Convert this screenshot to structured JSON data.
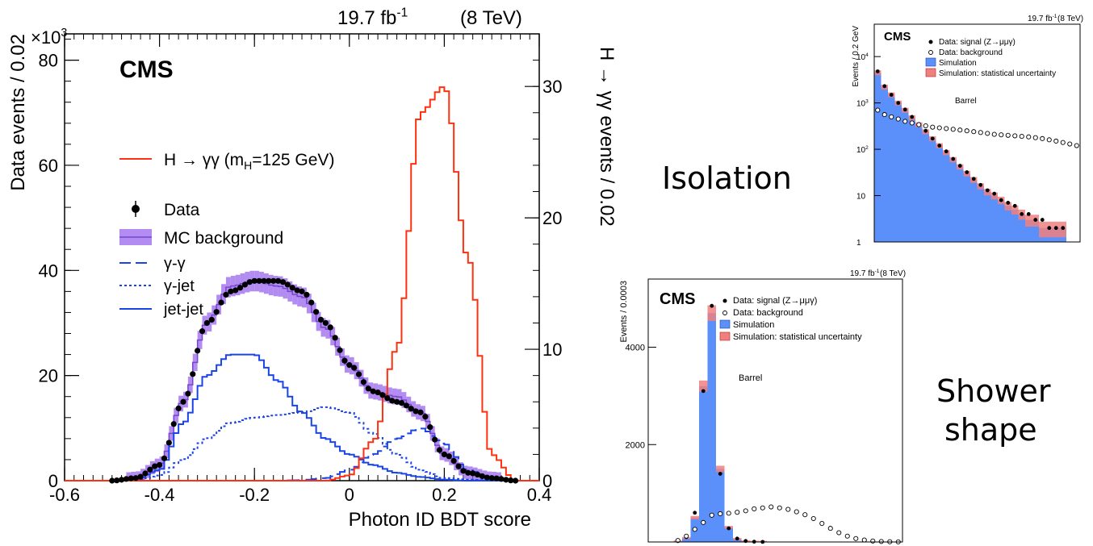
{
  "chart_data": [
    {
      "type": "line",
      "title": "",
      "lumi_label": "19.7 fb",
      "lumi_sup": "-1",
      "lumi_energy": "(8 TeV)",
      "cms_label": "CMS",
      "xlabel": "Photon ID BDT score",
      "ylabel_left": "Data events / 0.02",
      "ylabel_right": "H → γγ events / 0.02",
      "multiplier_base": "×10",
      "multiplier_exp": "3",
      "xlim": [
        -0.6,
        0.4
      ],
      "ylim_left": [
        0,
        85
      ],
      "ylim_right": [
        0,
        34
      ],
      "xticks": [
        -0.6,
        -0.4,
        -0.2,
        0,
        0.2,
        0.4
      ],
      "xtick_labels": [
        "-0.6",
        "-0.4",
        "-0.2",
        "0",
        "0.2",
        "0.4"
      ],
      "yticks_left": [
        0,
        20,
        40,
        60,
        80
      ],
      "ytick_left_labels": [
        "0",
        "20",
        "40",
        "60",
        "80"
      ],
      "yticks_right": [
        0,
        10,
        20,
        30
      ],
      "ytick_right_labels": [
        "0",
        "10",
        "20",
        "30"
      ],
      "legend": {
        "signal_prefix": "H → γγ  (m",
        "signal_sub": "H",
        "signal_suffix": "=125 GeV)",
        "data": "Data",
        "mc": "MC background",
        "gg": "γ-γ",
        "gj": "γ-jet",
        "jj": "jet-jet"
      },
      "colors": {
        "signal": "#ff3010",
        "data": "#000000",
        "mc_band": "#9966ee",
        "mc_line": "#7744cc",
        "bkg": "#1a44e6"
      },
      "x": [
        -0.5,
        -0.45,
        -0.4,
        -0.35,
        -0.3,
        -0.25,
        -0.2,
        -0.15,
        -0.1,
        -0.05,
        0.0,
        0.05,
        0.1,
        0.15,
        0.2,
        0.25,
        0.3,
        0.35
      ],
      "series": [
        {
          "name": "Data",
          "values": [
            0,
            0.5,
            3,
            15,
            30,
            36,
            38,
            38,
            36,
            30,
            22,
            17,
            15,
            13,
            5,
            1.5,
            0.5,
            0
          ]
        },
        {
          "name": "MC background",
          "values": [
            0,
            0.5,
            3,
            15,
            30,
            37,
            38,
            37,
            35,
            29,
            22,
            17,
            16,
            13,
            5,
            1.5,
            0.5,
            0
          ]
        },
        {
          "name": "γ-γ",
          "values": [
            0,
            0,
            0,
            0,
            0,
            0,
            0,
            0,
            0.1,
            0.5,
            2,
            5,
            8,
            10,
            7,
            2,
            0.5,
            0
          ]
        },
        {
          "name": "γ-jet",
          "values": [
            0,
            0,
            1,
            4,
            8,
            11,
            12,
            12.5,
            13,
            14,
            13,
            9,
            5,
            2,
            0.5,
            0.2,
            0,
            0
          ]
        },
        {
          "name": "jet-jet",
          "values": [
            0,
            0.3,
            2,
            11,
            20,
            24,
            24,
            19,
            13,
            8,
            5,
            3,
            1.5,
            0.7,
            0.2,
            0,
            0,
            0
          ]
        },
        {
          "name": "H → γγ",
          "axis": "right",
          "values": [
            0,
            0,
            0,
            0,
            0,
            0,
            0,
            0,
            0,
            0,
            0.4,
            3,
            10,
            28,
            30,
            17,
            2,
            0
          ]
        }
      ]
    },
    {
      "type": "bar",
      "title": "",
      "annotation": "Isolation",
      "lumi_label": "19.7 fb",
      "lumi_sup": "-1",
      "lumi_energy": "(8 TeV)",
      "cms_label": "CMS",
      "ylabel": "Events / 0.2 GeV",
      "yscale": "log",
      "ylim": [
        1,
        50000
      ],
      "ytick_labels": [
        "1",
        "10",
        "10",
        "10",
        "10"
      ],
      "ytick_exps": [
        "",
        "",
        "2",
        "3",
        "4"
      ],
      "region_label": "Barrel",
      "legend": [
        "Data: signal (Z→μμγ)",
        "Data: background",
        "Simulation",
        "Simulation: statistical uncertainty"
      ],
      "colors": {
        "simulation": "#5b8ff9",
        "uncertainty": "#f08080"
      },
      "x_bins": 30,
      "series": [
        {
          "name": "Simulation",
          "values": [
            4500,
            2200,
            1500,
            1000,
            700,
            480,
            340,
            240,
            170,
            120,
            85,
            60,
            42,
            30,
            22,
            16,
            12,
            10,
            8,
            6,
            5,
            4,
            3,
            3,
            2,
            2,
            2,
            2,
            1,
            1
          ]
        },
        {
          "name": "Data: signal (Z→μμγ)",
          "values": [
            4800,
            2300,
            1500,
            1000,
            720,
            500,
            350,
            250,
            170,
            120,
            90,
            62,
            44,
            32,
            23,
            17,
            13,
            11,
            8,
            7,
            6,
            4,
            4,
            3,
            3,
            2,
            2,
            2,
            1,
            1
          ]
        },
        {
          "name": "Data: background",
          "values": [
            700,
            560,
            500,
            450,
            400,
            370,
            340,
            320,
            300,
            290,
            280,
            270,
            260,
            250,
            240,
            230,
            220,
            210,
            205,
            200,
            195,
            190,
            185,
            178,
            170,
            160,
            150,
            140,
            130,
            120
          ]
        }
      ]
    },
    {
      "type": "bar",
      "title": "",
      "annotation_line1": "Shower",
      "annotation_line2": "shape",
      "lumi_label": "19.7 fb",
      "lumi_sup": "-1",
      "lumi_energy": "(8 TeV)",
      "cms_label": "CMS",
      "ylabel": "Events / 0.0003",
      "ylim": [
        0,
        5400
      ],
      "ytick_labels": [
        "2000",
        "4000"
      ],
      "yticks": [
        2000,
        4000
      ],
      "region_label": "Barrel",
      "legend": [
        "Data: signal (Z→μμγ)",
        "Data: background",
        "Simulation",
        "Simulation: statistical uncertainty"
      ],
      "colors": {
        "simulation": "#5b8ff9",
        "uncertainty": "#f08080"
      },
      "x_bins": 30,
      "series": [
        {
          "name": "Simulation",
          "values": [
            0,
            0,
            0,
            10,
            80,
            500,
            3200,
            4700,
            1500,
            300,
            60,
            15,
            5,
            2,
            0,
            0,
            0,
            0,
            0,
            0,
            0,
            0,
            0,
            0,
            0,
            0,
            0,
            0,
            0,
            0
          ]
        },
        {
          "name": "Data: signal (Z→μμγ)",
          "values": [
            0,
            0,
            0,
            20,
            100,
            600,
            3100,
            4850,
            1400,
            280,
            70,
            20,
            6,
            2,
            0,
            0,
            0,
            0,
            0,
            0,
            0,
            0,
            0,
            0,
            0,
            0,
            0,
            0,
            0,
            0
          ]
        },
        {
          "name": "Data: background",
          "values": [
            0,
            0,
            0,
            30,
            120,
            260,
            400,
            550,
            580,
            590,
            610,
            640,
            680,
            700,
            720,
            700,
            670,
            620,
            560,
            480,
            380,
            280,
            190,
            120,
            70,
            40,
            20,
            10,
            5,
            2
          ]
        }
      ]
    }
  ]
}
